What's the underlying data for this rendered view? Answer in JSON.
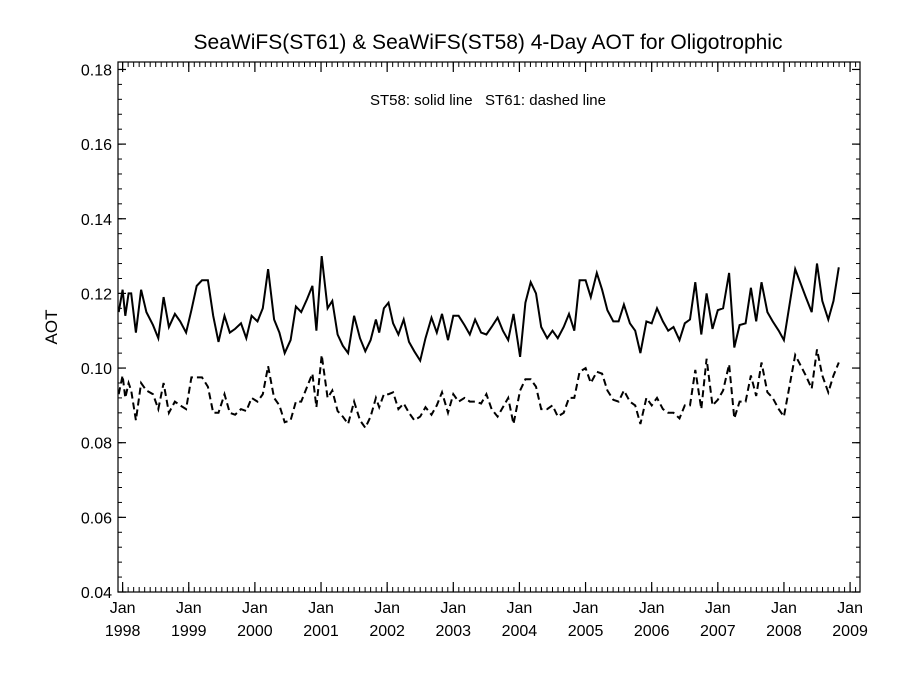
{
  "chart_data": {
    "type": "line",
    "title": "SeaWiFS(ST61) & SeaWiFS(ST58) 4-Day AOT for Oligotrophic",
    "ylabel": "AOT",
    "annotation": "ST58: solid line   ST61: dashed line",
    "xlim": [
      1997.93,
      2009.15
    ],
    "ylim": [
      0.04,
      0.182
    ],
    "yticks": [
      0.04,
      0.06,
      0.08,
      0.1,
      0.12,
      0.14,
      0.16,
      0.18
    ],
    "ytick_labels": [
      "0.04",
      "0.06",
      "0.08",
      "0.10",
      "0.12",
      "0.14",
      "0.16",
      "0.18"
    ],
    "xticks": [
      {
        "value": 1998,
        "month": "Jan",
        "year": "1998"
      },
      {
        "value": 1999,
        "month": "Jan",
        "year": "1999"
      },
      {
        "value": 2000,
        "month": "Jan",
        "year": "2000"
      },
      {
        "value": 2001,
        "month": "Jan",
        "year": "2001"
      },
      {
        "value": 2002,
        "month": "Jan",
        "year": "2002"
      },
      {
        "value": 2003,
        "month": "Jan",
        "year": "2003"
      },
      {
        "value": 2004,
        "month": "Jan",
        "year": "2004"
      },
      {
        "value": 2005,
        "month": "Jan",
        "year": "2005"
      },
      {
        "value": 2006,
        "month": "Jan",
        "year": "2006"
      },
      {
        "value": 2007,
        "month": "Jan",
        "year": "2007"
      },
      {
        "value": 2008,
        "month": "Jan",
        "year": "2008"
      },
      {
        "value": 2009,
        "month": "Jan",
        "year": "2009"
      }
    ],
    "grid": false,
    "series": [
      {
        "name": "ST58",
        "style": "solid",
        "color": "#000000",
        "points": [
          [
            1997.94,
            0.115
          ],
          [
            1998.0,
            0.121
          ],
          [
            1998.04,
            0.114
          ],
          [
            1998.09,
            0.12
          ],
          [
            1998.13,
            0.12
          ],
          [
            1998.2,
            0.1095
          ],
          [
            1998.28,
            0.121
          ],
          [
            1998.36,
            0.115
          ],
          [
            1998.46,
            0.1115
          ],
          [
            1998.54,
            0.108
          ],
          [
            1998.62,
            0.119
          ],
          [
            1998.7,
            0.111
          ],
          [
            1998.79,
            0.1145
          ],
          [
            1998.87,
            0.1125
          ],
          [
            1998.96,
            0.1095
          ],
          [
            1999.04,
            0.1155
          ],
          [
            1999.12,
            0.122
          ],
          [
            1999.2,
            0.1235
          ],
          [
            1999.29,
            0.1235
          ],
          [
            1999.37,
            0.114
          ],
          [
            1999.45,
            0.107
          ],
          [
            1999.54,
            0.114
          ],
          [
            1999.62,
            0.1095
          ],
          [
            1999.7,
            0.1105
          ],
          [
            1999.79,
            0.112
          ],
          [
            1999.87,
            0.108
          ],
          [
            1999.95,
            0.114
          ],
          [
            2000.04,
            0.1125
          ],
          [
            2000.12,
            0.116
          ],
          [
            2000.2,
            0.1265
          ],
          [
            2000.29,
            0.113
          ],
          [
            2000.37,
            0.1095
          ],
          [
            2000.45,
            0.104
          ],
          [
            2000.54,
            0.1075
          ],
          [
            2000.62,
            0.1165
          ],
          [
            2000.7,
            0.115
          ],
          [
            2000.79,
            0.1185
          ],
          [
            2000.87,
            0.122
          ],
          [
            2000.93,
            0.11
          ],
          [
            2001.01,
            0.13
          ],
          [
            2001.1,
            0.116
          ],
          [
            2001.17,
            0.118
          ],
          [
            2001.25,
            0.109
          ],
          [
            2001.33,
            0.106
          ],
          [
            2001.41,
            0.104
          ],
          [
            2001.5,
            0.114
          ],
          [
            2001.59,
            0.108
          ],
          [
            2001.67,
            0.1045
          ],
          [
            2001.75,
            0.1075
          ],
          [
            2001.83,
            0.113
          ],
          [
            2001.88,
            0.1095
          ],
          [
            2001.95,
            0.116
          ],
          [
            2002.02,
            0.1175
          ],
          [
            2002.09,
            0.112
          ],
          [
            2002.17,
            0.109
          ],
          [
            2002.25,
            0.113
          ],
          [
            2002.33,
            0.107
          ],
          [
            2002.41,
            0.1045
          ],
          [
            2002.5,
            0.102
          ],
          [
            2002.58,
            0.108
          ],
          [
            2002.67,
            0.1135
          ],
          [
            2002.75,
            0.1095
          ],
          [
            2002.83,
            0.1145
          ],
          [
            2002.92,
            0.1075
          ],
          [
            2003.0,
            0.114
          ],
          [
            2003.08,
            0.114
          ],
          [
            2003.17,
            0.1115
          ],
          [
            2003.25,
            0.109
          ],
          [
            2003.33,
            0.113
          ],
          [
            2003.42,
            0.1095
          ],
          [
            2003.5,
            0.109
          ],
          [
            2003.58,
            0.111
          ],
          [
            2003.67,
            0.1135
          ],
          [
            2003.75,
            0.11
          ],
          [
            2003.83,
            0.1075
          ],
          [
            2003.91,
            0.1145
          ],
          [
            2004.01,
            0.103
          ],
          [
            2004.09,
            0.1175
          ],
          [
            2004.17,
            0.123
          ],
          [
            2004.25,
            0.12
          ],
          [
            2004.33,
            0.111
          ],
          [
            2004.42,
            0.108
          ],
          [
            2004.5,
            0.11
          ],
          [
            2004.58,
            0.108
          ],
          [
            2004.67,
            0.111
          ],
          [
            2004.75,
            0.1145
          ],
          [
            2004.83,
            0.11
          ],
          [
            2004.91,
            0.1235
          ],
          [
            2005.0,
            0.1235
          ],
          [
            2005.08,
            0.119
          ],
          [
            2005.17,
            0.1255
          ],
          [
            2005.25,
            0.121
          ],
          [
            2005.33,
            0.1155
          ],
          [
            2005.42,
            0.1125
          ],
          [
            2005.5,
            0.1125
          ],
          [
            2005.58,
            0.117
          ],
          [
            2005.67,
            0.112
          ],
          [
            2005.75,
            0.11
          ],
          [
            2005.83,
            0.104
          ],
          [
            2005.92,
            0.1125
          ],
          [
            2006.0,
            0.112
          ],
          [
            2006.08,
            0.116
          ],
          [
            2006.17,
            0.1125
          ],
          [
            2006.25,
            0.11
          ],
          [
            2006.33,
            0.111
          ],
          [
            2006.42,
            0.1075
          ],
          [
            2006.5,
            0.112
          ],
          [
            2006.58,
            0.113
          ],
          [
            2006.66,
            0.123
          ],
          [
            2006.75,
            0.109
          ],
          [
            2006.83,
            0.12
          ],
          [
            2006.92,
            0.1105
          ],
          [
            2007.0,
            0.1155
          ],
          [
            2007.08,
            0.116
          ],
          [
            2007.17,
            0.1255
          ],
          [
            2007.25,
            0.1055
          ],
          [
            2007.33,
            0.1115
          ],
          [
            2007.42,
            0.112
          ],
          [
            2007.5,
            0.1215
          ],
          [
            2007.58,
            0.1125
          ],
          [
            2007.66,
            0.123
          ],
          [
            2007.75,
            0.115
          ],
          [
            2007.83,
            0.1125
          ],
          [
            2007.92,
            0.11
          ],
          [
            2008.0,
            0.1075
          ],
          [
            2008.17,
            0.1265
          ],
          [
            2008.33,
            0.119
          ],
          [
            2008.42,
            0.115
          ],
          [
            2008.5,
            0.128
          ],
          [
            2008.58,
            0.118
          ],
          [
            2008.67,
            0.113
          ],
          [
            2008.75,
            0.118
          ],
          [
            2008.83,
            0.127
          ]
        ]
      },
      {
        "name": "ST61",
        "style": "dashed",
        "color": "#000000",
        "points": [
          [
            1997.94,
            0.093
          ],
          [
            1998.0,
            0.098
          ],
          [
            1998.04,
            0.092
          ],
          [
            1998.09,
            0.096
          ],
          [
            1998.13,
            0.094
          ],
          [
            1998.2,
            0.086
          ],
          [
            1998.28,
            0.096
          ],
          [
            1998.36,
            0.094
          ],
          [
            1998.46,
            0.093
          ],
          [
            1998.54,
            0.089
          ],
          [
            1998.62,
            0.096
          ],
          [
            1998.7,
            0.088
          ],
          [
            1998.79,
            0.091
          ],
          [
            1998.87,
            0.09
          ],
          [
            1998.96,
            0.089
          ],
          [
            1999.04,
            0.0975
          ],
          [
            1999.12,
            0.0975
          ],
          [
            1999.2,
            0.0975
          ],
          [
            1999.29,
            0.095
          ],
          [
            1999.37,
            0.088
          ],
          [
            1999.45,
            0.088
          ],
          [
            1999.54,
            0.093
          ],
          [
            1999.62,
            0.088
          ],
          [
            1999.7,
            0.0875
          ],
          [
            1999.79,
            0.089
          ],
          [
            1999.87,
            0.0885
          ],
          [
            1999.95,
            0.092
          ],
          [
            2000.04,
            0.091
          ],
          [
            2000.12,
            0.093
          ],
          [
            2000.2,
            0.1005
          ],
          [
            2000.29,
            0.092
          ],
          [
            2000.37,
            0.09
          ],
          [
            2000.45,
            0.0855
          ],
          [
            2000.54,
            0.086
          ],
          [
            2000.62,
            0.091
          ],
          [
            2000.7,
            0.091
          ],
          [
            2000.79,
            0.095
          ],
          [
            2000.87,
            0.0985
          ],
          [
            2000.93,
            0.0895
          ],
          [
            2001.01,
            0.1035
          ],
          [
            2001.1,
            0.092
          ],
          [
            2001.17,
            0.094
          ],
          [
            2001.25,
            0.0885
          ],
          [
            2001.33,
            0.087
          ],
          [
            2001.41,
            0.085
          ],
          [
            2001.5,
            0.091
          ],
          [
            2001.59,
            0.086
          ],
          [
            2001.67,
            0.084
          ],
          [
            2001.75,
            0.087
          ],
          [
            2001.83,
            0.092
          ],
          [
            2001.88,
            0.0895
          ],
          [
            2001.95,
            0.093
          ],
          [
            2002.02,
            0.093
          ],
          [
            2002.09,
            0.0935
          ],
          [
            2002.17,
            0.089
          ],
          [
            2002.25,
            0.0905
          ],
          [
            2002.33,
            0.088
          ],
          [
            2002.41,
            0.086
          ],
          [
            2002.5,
            0.087
          ],
          [
            2002.58,
            0.0895
          ],
          [
            2002.67,
            0.0875
          ],
          [
            2002.75,
            0.09
          ],
          [
            2002.83,
            0.0935
          ],
          [
            2002.92,
            0.088
          ],
          [
            2003.0,
            0.093
          ],
          [
            2003.08,
            0.091
          ],
          [
            2003.17,
            0.092
          ],
          [
            2003.25,
            0.091
          ],
          [
            2003.33,
            0.091
          ],
          [
            2003.42,
            0.0905
          ],
          [
            2003.5,
            0.093
          ],
          [
            2003.58,
            0.089
          ],
          [
            2003.67,
            0.087
          ],
          [
            2003.75,
            0.0895
          ],
          [
            2003.83,
            0.092
          ],
          [
            2003.91,
            0.085
          ],
          [
            2004.01,
            0.094
          ],
          [
            2004.09,
            0.097
          ],
          [
            2004.17,
            0.097
          ],
          [
            2004.25,
            0.095
          ],
          [
            2004.33,
            0.089
          ],
          [
            2004.42,
            0.089
          ],
          [
            2004.5,
            0.09
          ],
          [
            2004.58,
            0.087
          ],
          [
            2004.67,
            0.088
          ],
          [
            2004.75,
            0.092
          ],
          [
            2004.83,
            0.092
          ],
          [
            2004.91,
            0.099
          ],
          [
            2005.0,
            0.1
          ],
          [
            2005.08,
            0.096
          ],
          [
            2005.17,
            0.099
          ],
          [
            2005.25,
            0.0985
          ],
          [
            2005.33,
            0.094
          ],
          [
            2005.42,
            0.0915
          ],
          [
            2005.5,
            0.091
          ],
          [
            2005.58,
            0.094
          ],
          [
            2005.67,
            0.091
          ],
          [
            2005.75,
            0.09
          ],
          [
            2005.83,
            0.085
          ],
          [
            2005.92,
            0.092
          ],
          [
            2006.0,
            0.09
          ],
          [
            2006.08,
            0.092
          ],
          [
            2006.17,
            0.089
          ],
          [
            2006.25,
            0.088
          ],
          [
            2006.33,
            0.088
          ],
          [
            2006.42,
            0.0865
          ],
          [
            2006.5,
            0.09
          ],
          [
            2006.58,
            0.09
          ],
          [
            2006.66,
            0.0995
          ],
          [
            2006.75,
            0.089
          ],
          [
            2006.83,
            0.1025
          ],
          [
            2006.92,
            0.09
          ],
          [
            2007.0,
            0.0915
          ],
          [
            2007.08,
            0.094
          ],
          [
            2007.17,
            0.101
          ],
          [
            2007.25,
            0.0865
          ],
          [
            2007.33,
            0.091
          ],
          [
            2007.42,
            0.091
          ],
          [
            2007.5,
            0.098
          ],
          [
            2007.58,
            0.0925
          ],
          [
            2007.66,
            0.1015
          ],
          [
            2007.75,
            0.0935
          ],
          [
            2007.83,
            0.092
          ],
          [
            2007.92,
            0.089
          ],
          [
            2008.0,
            0.087
          ],
          [
            2008.17,
            0.1035
          ],
          [
            2008.33,
            0.098
          ],
          [
            2008.42,
            0.0945
          ],
          [
            2008.5,
            0.105
          ],
          [
            2008.58,
            0.098
          ],
          [
            2008.67,
            0.0935
          ],
          [
            2008.75,
            0.098
          ],
          [
            2008.83,
            0.1015
          ]
        ]
      }
    ]
  }
}
